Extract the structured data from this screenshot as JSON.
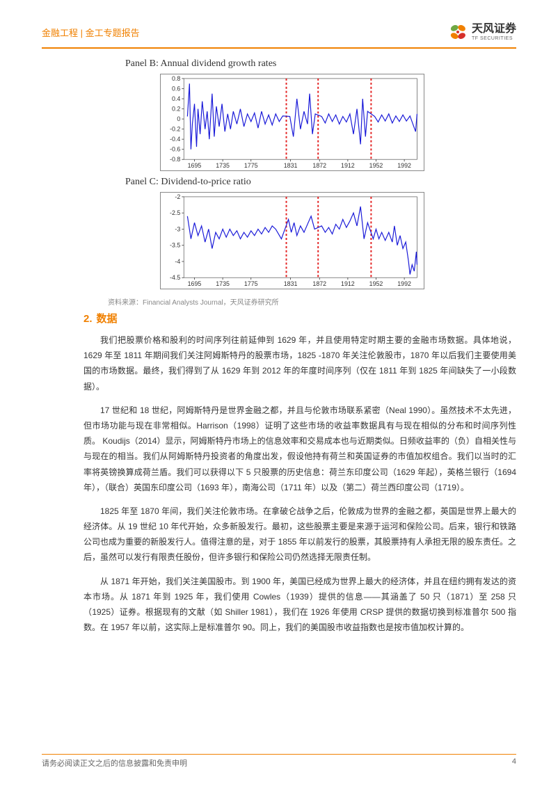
{
  "header": {
    "category": "金融工程 | 金工专题报告",
    "logo": {
      "cn": "天风证券",
      "en": "TF SECURITIES",
      "colors": {
        "green": "#6fa843",
        "orange": "#f08000",
        "red": "#d6302b"
      }
    }
  },
  "panelB": {
    "title": "Panel B: Annual dividend growth rates",
    "chart": {
      "type": "line",
      "xlim": [
        1680,
        2010
      ],
      "ylim": [
        -0.8,
        0.8
      ],
      "yticks": [
        -0.8,
        -0.6,
        -0.4,
        -0.2,
        0,
        0.2,
        0.4,
        0.6,
        0.8
      ],
      "xticks": [
        1695,
        1735,
        1775,
        1831,
        1872,
        1912,
        1952,
        1992
      ],
      "vlines": [
        1825,
        1870,
        1945
      ],
      "line_color": "#1818d8",
      "vline_color": "#e32020",
      "tick_color": "#333333",
      "border_color": "#666666",
      "line_width": 1.2,
      "vline_width": 2,
      "vline_dash": "3,3",
      "background": "#ffffff",
      "series": [
        [
          1685,
          0.05
        ],
        [
          1688,
          0.7
        ],
        [
          1690,
          -0.6
        ],
        [
          1692,
          -0.1
        ],
        [
          1695,
          0.3
        ],
        [
          1698,
          -0.55
        ],
        [
          1700,
          0.2
        ],
        [
          1703,
          -0.3
        ],
        [
          1706,
          0.35
        ],
        [
          1710,
          -0.2
        ],
        [
          1713,
          0.15
        ],
        [
          1716,
          -0.4
        ],
        [
          1720,
          0.5
        ],
        [
          1723,
          -0.35
        ],
        [
          1726,
          0.25
        ],
        [
          1730,
          -0.15
        ],
        [
          1734,
          0.3
        ],
        [
          1738,
          -0.25
        ],
        [
          1742,
          0.1
        ],
        [
          1746,
          -0.2
        ],
        [
          1750,
          0.15
        ],
        [
          1755,
          -0.1
        ],
        [
          1760,
          0.2
        ],
        [
          1765,
          -0.15
        ],
        [
          1770,
          0.1
        ],
        [
          1775,
          -0.05
        ],
        [
          1780,
          0.12
        ],
        [
          1785,
          -0.18
        ],
        [
          1790,
          0.15
        ],
        [
          1795,
          -0.1
        ],
        [
          1800,
          0.08
        ],
        [
          1805,
          -0.12
        ],
        [
          1810,
          0.1
        ],
        [
          1815,
          -0.05
        ],
        [
          1820,
          0.06
        ],
        [
          1830,
          0.05
        ],
        [
          1835,
          -0.35
        ],
        [
          1840,
          0.4
        ],
        [
          1845,
          -0.2
        ],
        [
          1850,
          0.15
        ],
        [
          1855,
          -0.1
        ],
        [
          1858,
          0.5
        ],
        [
          1862,
          -0.3
        ],
        [
          1866,
          0.1
        ],
        [
          1875,
          0.05
        ],
        [
          1880,
          -0.08
        ],
        [
          1885,
          0.1
        ],
        [
          1890,
          -0.05
        ],
        [
          1895,
          0.08
        ],
        [
          1900,
          -0.1
        ],
        [
          1905,
          0.05
        ],
        [
          1910,
          -0.06
        ],
        [
          1915,
          0.1
        ],
        [
          1920,
          -0.3
        ],
        [
          1925,
          0.2
        ],
        [
          1930,
          -0.5
        ],
        [
          1933,
          0.4
        ],
        [
          1937,
          -0.35
        ],
        [
          1940,
          0.15
        ],
        [
          1950,
          0.05
        ],
        [
          1955,
          -0.06
        ],
        [
          1960,
          0.08
        ],
        [
          1965,
          -0.04
        ],
        [
          1970,
          0.1
        ],
        [
          1975,
          -0.08
        ],
        [
          1980,
          0.06
        ],
        [
          1985,
          -0.05
        ],
        [
          1990,
          0.08
        ],
        [
          1995,
          -0.04
        ],
        [
          2000,
          0.06
        ],
        [
          2008,
          -0.25
        ],
        [
          2010,
          0.1
        ]
      ]
    }
  },
  "panelC": {
    "title": "Panel C: Dividend-to-price ratio",
    "chart": {
      "type": "line",
      "xlim": [
        1680,
        2010
      ],
      "ylim": [
        -4.5,
        -2.0
      ],
      "yticks": [
        -4.5,
        -4.0,
        -3.5,
        -3.0,
        -2.5,
        -2.0
      ],
      "xticks": [
        1695,
        1735,
        1775,
        1831,
        1872,
        1912,
        1952,
        1992
      ],
      "vlines": [
        1825,
        1870,
        1945
      ],
      "line_color": "#1818d8",
      "vline_color": "#e32020",
      "tick_color": "#333333",
      "border_color": "#666666",
      "line_width": 1.2,
      "vline_width": 2,
      "vline_dash": "3,3",
      "background": "#ffffff",
      "series": [
        [
          1685,
          -2.6
        ],
        [
          1690,
          -3.3
        ],
        [
          1695,
          -2.8
        ],
        [
          1700,
          -3.2
        ],
        [
          1705,
          -2.9
        ],
        [
          1710,
          -3.4
        ],
        [
          1715,
          -3.0
        ],
        [
          1720,
          -3.6
        ],
        [
          1725,
          -3.1
        ],
        [
          1730,
          -3.3
        ],
        [
          1735,
          -3.0
        ],
        [
          1740,
          -3.25
        ],
        [
          1745,
          -3.0
        ],
        [
          1750,
          -3.2
        ],
        [
          1755,
          -3.05
        ],
        [
          1760,
          -3.3
        ],
        [
          1765,
          -3.1
        ],
        [
          1770,
          -3.25
        ],
        [
          1775,
          -3.05
        ],
        [
          1780,
          -3.2
        ],
        [
          1785,
          -3.0
        ],
        [
          1790,
          -3.15
        ],
        [
          1795,
          -2.95
        ],
        [
          1800,
          -3.1
        ],
        [
          1805,
          -2.9
        ],
        [
          1810,
          -3.0
        ],
        [
          1818,
          -3.3
        ],
        [
          1828,
          -2.7
        ],
        [
          1832,
          -3.1
        ],
        [
          1836,
          -2.8
        ],
        [
          1840,
          -3.2
        ],
        [
          1845,
          -2.9
        ],
        [
          1850,
          -3.1
        ],
        [
          1855,
          -2.85
        ],
        [
          1860,
          -2.6
        ],
        [
          1865,
          -3.0
        ],
        [
          1875,
          -2.9
        ],
        [
          1880,
          -3.1
        ],
        [
          1885,
          -2.95
        ],
        [
          1890,
          -3.15
        ],
        [
          1895,
          -2.85
        ],
        [
          1900,
          -3.0
        ],
        [
          1905,
          -2.7
        ],
        [
          1910,
          -2.95
        ],
        [
          1915,
          -2.75
        ],
        [
          1920,
          -2.5
        ],
        [
          1925,
          -2.9
        ],
        [
          1930,
          -2.3
        ],
        [
          1935,
          -3.3
        ],
        [
          1940,
          -2.8
        ],
        [
          1948,
          -3.3
        ],
        [
          1952,
          -3.0
        ],
        [
          1956,
          -3.3
        ],
        [
          1960,
          -3.1
        ],
        [
          1965,
          -3.35
        ],
        [
          1970,
          -3.1
        ],
        [
          1975,
          -3.4
        ],
        [
          1978,
          -2.9
        ],
        [
          1982,
          -3.5
        ],
        [
          1986,
          -3.2
        ],
        [
          1990,
          -3.6
        ],
        [
          1994,
          -3.4
        ],
        [
          1998,
          -4.0
        ],
        [
          2000,
          -4.4
        ],
        [
          2003,
          -4.1
        ],
        [
          2006,
          -4.3
        ],
        [
          2009,
          -3.7
        ],
        [
          2010,
          -4.1
        ]
      ]
    }
  },
  "source": "资料来源：Financial Analysts Journal，天风证券研究所",
  "section": {
    "num": "2.",
    "title": "数据"
  },
  "paragraphs": {
    "p1": "我们把股票价格和股利的时间序列往前延伸到 1629 年，并且使用特定时期主要的金融市场数据。具体地说，1629 年至 1811 年期间我们关注阿姆斯特丹的股票市场，1825 -1870 年关注伦敦股市，1870 年以后我们主要使用美国的市场数据。最终，我们得到了从 1629 年到 2012 年的年度时间序列（仅在 1811 年到 1825 年间缺失了一小段数据）。",
    "p2": "17 世纪和 18 世纪，阿姆斯特丹是世界金融之都，并且与伦敦市场联系紧密（Neal 1990）。虽然技术不太先进，但市场功能与现在非常相似。Harrison（1998）证明了这些市场的收益率数据具有与现在相似的分布和时间序列性质。 Koudijs（2014）显示，阿姆斯特丹市场上的信息效率和交易成本也与近期类似。日频收益率的（负）自相关性与与现在的相当。我们从阿姆斯特丹投资者的角度出发，假设他持有荷兰和英国证券的市值加权组合。我们以当时的汇率将英镑换算成荷兰盾。我们可以获得以下 5 只股票的历史信息：荷兰东印度公司（1629 年起），英格兰银行（1694 年），（联合）英国东印度公司（1693 年），南海公司（1711 年）以及（第二）荷兰西印度公司（1719）。",
    "p3": "1825 年至 1870 年间，我们关注伦敦市场。在拿破仑战争之后，伦敦成为世界的金融之都，英国是世界上最大的经济体。从 19 世纪 10 年代开始，众多新股发行。最初，这些股票主要是来源于运河和保险公司。后来，银行和铁路公司也成为重要的新股发行人。值得注意的是，对于 1855 年以前发行的股票，其股票持有人承担无限的股东责任。之后，虽然可以发行有限责任股份，但许多银行和保险公司仍然选择无限责任制。",
    "p4": "从 1871 年开始，我们关注美国股市。到 1900 年，美国已经成为世界上最大的经济体，并且在纽约拥有发达的资本市场。从 1871 年到 1925 年，我们使用 Cowles（1939）提供的信息——其涵盖了 50 只（1871）至 258 只（1925）证券。根据现有的文献（如 Shiller 1981），我们在 1926 年使用 CRSP 提供的数据切换到标准普尔 500 指数。在 1957 年以前，这实际上是标准普尔 90。同上，我们的美国股市收益指数也是按市值加权计算的。"
  },
  "footer": {
    "disclaimer": "请务必阅读正文之后的信息披露和免责申明",
    "page": "4"
  }
}
